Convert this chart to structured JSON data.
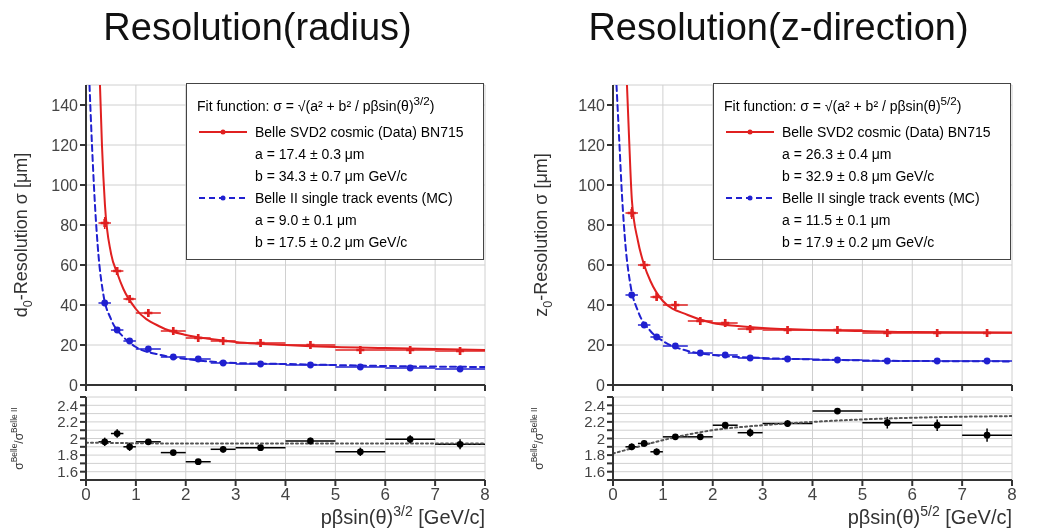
{
  "chart_data": [
    {
      "type": "scatter",
      "title": "Resolution(radius)",
      "ylabel": "d$_{0}$-Resolution σ [μm]",
      "legend_title": "Fit function:   σ = √(a² + b² / pβsin(θ)$^{3/2}$)",
      "annotations": [
        "a =  17.4 ± 0.3 μm",
        "b =  34.3 ± 0.7 μm GeV/c",
        "a =  9.0 ± 0.1 μm",
        "b =  17.5 ± 0.2 μm GeV/c"
      ],
      "xlim": [
        0,
        8
      ],
      "xticks": [
        0,
        1,
        2,
        3,
        4,
        5,
        6,
        7,
        8
      ],
      "ylim": [
        0,
        150
      ],
      "yticks": [
        0,
        20,
        40,
        60,
        80,
        100,
        120,
        140
      ],
      "grid": true,
      "legend": "top right",
      "tick_labels": "y",
      "series": [
        {
          "name": "Belle SVD2 cosmic (Data) BN715",
          "color": "#e02020",
          "marker": "cross",
          "x": [
            0.375,
            0.625,
            0.875,
            1.25,
            1.75,
            2.25,
            2.75,
            3.5,
            4.5,
            5.5,
            6.5,
            7.5
          ],
          "values": [
            81,
            57,
            43,
            36,
            27,
            23.5,
            22,
            21,
            20,
            17.5,
            17.5,
            17
          ],
          "xerrors": [
            0.125,
            0.125,
            0.125,
            0.25,
            0.25,
            0.25,
            0.25,
            0.5,
            0.5,
            0.5,
            0.5,
            0.5
          ],
          "errors": [
            3,
            2,
            1.5,
            1,
            1,
            1,
            1,
            null,
            null,
            null,
            null,
            null
          ]
        },
        {
          "name": "Belle II single track events (MC)",
          "color": "#2020d0",
          "marker": "circle",
          "x": [
            0.375,
            0.625,
            0.875,
            1.25,
            1.75,
            2.25,
            2.75,
            3.5,
            4.5,
            5.5,
            6.5,
            7.5
          ],
          "values": [
            41,
            27.5,
            22,
            18,
            14,
            13,
            11,
            10.5,
            10,
            9,
            8.5,
            8
          ],
          "xerrors": [
            0.125,
            0.125,
            0.125,
            0.25,
            0.25,
            0.25,
            0.25,
            0.5,
            0.5,
            0.5,
            0.5,
            0.5
          ],
          "errors": [
            1,
            1,
            1,
            null,
            null,
            null,
            null,
            null,
            null,
            null,
            null,
            null
          ]
        },
        {
          "type": "line",
          "color": "#e02020",
          "line_style": "solid",
          "x": [
            0.28,
            0.32,
            0.38,
            0.5,
            0.625,
            0.75,
            1,
            1.5,
            2,
            2.5,
            3,
            4,
            5,
            6,
            8
          ],
          "values": [
            150,
            120,
            90,
            66,
            56,
            48,
            38,
            29,
            25,
            23,
            21.5,
            20,
            19,
            18.5,
            17.5
          ]
        },
        {
          "type": "line",
          "color": "#2020d0",
          "line_style": "dashed",
          "x": [
            0.07,
            0.12,
            0.18,
            0.25,
            0.35,
            0.5,
            0.75,
            1,
            1.5,
            2,
            3,
            4,
            6,
            8
          ],
          "values": [
            150,
            120,
            90,
            65,
            45,
            33,
            24,
            19,
            15,
            13,
            11,
            10.5,
            9.5,
            9
          ]
        }
      ]
    },
    {
      "type": "scatter",
      "title": "Resolution(z-direction)",
      "ylabel": "z$_{0}$-Resolution σ [μm]",
      "legend_title": "Fit function:   σ = √(a² + b² / pβsin(θ)$^{5/2}$)",
      "annotations": [
        "a =  26.3 ± 0.4 μm",
        "b =  32.9 ± 0.8 μm GeV/c",
        "a =  11.5 ± 0.1 μm",
        "b =  17.9 ± 0.2 μm GeV/c"
      ],
      "xlim": [
        0,
        8
      ],
      "xticks": [
        0,
        1,
        2,
        3,
        4,
        5,
        6,
        7,
        8
      ],
      "ylim": [
        0,
        150
      ],
      "yticks": [
        0,
        20,
        40,
        60,
        80,
        100,
        120,
        140
      ],
      "grid": true,
      "legend": "top right",
      "tick_labels": "y",
      "series": [
        {
          "name": "Belle SVD2 cosmic (Data) BN715",
          "color": "#e02020",
          "marker": "cross",
          "x": [
            0.375,
            0.625,
            0.875,
            1.25,
            1.75,
            2.25,
            2.75,
            3.5,
            4.5,
            5.5,
            6.5,
            7.5
          ],
          "values": [
            86,
            60,
            44,
            40,
            32,
            31,
            28,
            27.5,
            27.5,
            26,
            26,
            26
          ],
          "xerrors": [
            0.125,
            0.125,
            0.125,
            0.25,
            0.25,
            0.25,
            0.25,
            0.5,
            0.5,
            0.5,
            0.5,
            0.5
          ],
          "errors": [
            3,
            2,
            1.5,
            1,
            1,
            1,
            1,
            null,
            null,
            null,
            null,
            null
          ]
        },
        {
          "name": "Belle II single track events (MC)",
          "color": "#2020d0",
          "marker": "circle",
          "x": [
            0.375,
            0.625,
            0.875,
            1.25,
            1.75,
            2.25,
            2.75,
            3.5,
            4.5,
            5.5,
            6.5,
            7.5
          ],
          "values": [
            45,
            30,
            24,
            19.5,
            16,
            15,
            13.5,
            13,
            12.5,
            12,
            12,
            12
          ],
          "xerrors": [
            0.125,
            0.125,
            0.125,
            0.25,
            0.25,
            0.25,
            0.25,
            0.5,
            0.5,
            0.5,
            0.5,
            0.5
          ],
          "errors": [
            1,
            1,
            1,
            null,
            null,
            null,
            null,
            null,
            null,
            null,
            null,
            null
          ]
        },
        {
          "type": "line",
          "color": "#e02020",
          "line_style": "solid",
          "x": [
            0.28,
            0.32,
            0.38,
            0.5,
            0.625,
            0.75,
            1,
            1.5,
            2,
            2.5,
            3,
            4,
            5,
            6,
            8
          ],
          "values": [
            150,
            125,
            92,
            72,
            60,
            52,
            42,
            35,
            31,
            29.5,
            28.5,
            27.5,
            27,
            26.5,
            26.3
          ]
        },
        {
          "type": "line",
          "color": "#2020d0",
          "line_style": "dashed",
          "x": [
            0.07,
            0.12,
            0.18,
            0.25,
            0.35,
            0.5,
            0.75,
            1,
            1.5,
            2,
            3,
            4,
            6,
            8
          ],
          "values": [
            150,
            125,
            95,
            70,
            50,
            37,
            27,
            22,
            17,
            15,
            13.5,
            12.8,
            12,
            11.8
          ]
        }
      ]
    },
    {
      "type": "scatter",
      "ylabel": "σ$^{Belle}$/σ$^{Belle II}$",
      "xlabel": "pβsin(θ)$^{3/2}$ [GeV/c]",
      "xlim": [
        0,
        8
      ],
      "xticks": [
        0,
        1,
        2,
        3,
        4,
        5,
        6,
        7,
        8
      ],
      "ylim": [
        1.5,
        2.5
      ],
      "yticks": [
        {
          "value": 1.5,
          "label": null
        },
        1.6,
        {
          "value": 1.7,
          "label": null
        },
        1.8,
        {
          "value": 1.9,
          "label": null
        },
        2,
        {
          "value": 2.1,
          "label": null
        },
        2.2,
        {
          "value": 2.3,
          "label": null
        },
        2.4,
        {
          "value": 2.5,
          "label": null
        }
      ],
      "grid": true,
      "series": [
        {
          "color": "#000000",
          "marker": "circle",
          "x": [
            0.375,
            0.625,
            0.875,
            1.25,
            1.75,
            2.25,
            2.75,
            3.5,
            4.5,
            5.5,
            6.5,
            7.5
          ],
          "values": [
            1.96,
            2.06,
            1.9,
            1.96,
            1.83,
            1.72,
            1.87,
            1.89,
            1.97,
            1.84,
            1.99,
            1.93
          ],
          "xerrors": [
            0.125,
            0.125,
            0.125,
            0.25,
            0.25,
            0.25,
            0.25,
            0.5,
            0.5,
            0.5,
            0.5,
            0.5
          ],
          "errors": [
            0.05,
            0.05,
            0.05,
            0.03,
            0.03,
            0.03,
            0.04,
            0.03,
            0.04,
            0.05,
            0.05,
            0.06
          ]
        },
        {
          "type": "line",
          "color": "#555555",
          "line_style": "dotted",
          "x": [
            0,
            2,
            4,
            8
          ],
          "values": [
            1.95,
            1.94,
            1.94,
            1.94
          ]
        }
      ]
    },
    {
      "type": "scatter",
      "ylabel": "σ$^{Belle}$/σ$^{Belle II}$",
      "xlabel": "pβsin(θ)$^{5/2}$ [GeV/c]",
      "xlim": [
        0,
        8
      ],
      "xticks": [
        0,
        1,
        2,
        3,
        4,
        5,
        6,
        7,
        8
      ],
      "ylim": [
        1.5,
        2.5
      ],
      "yticks": [
        {
          "value": 1.5,
          "label": null
        },
        1.6,
        {
          "value": 1.7,
          "label": null
        },
        1.8,
        {
          "value": 1.9,
          "label": null
        },
        2,
        {
          "value": 2.1,
          "label": null
        },
        2.2,
        {
          "value": 2.3,
          "label": null
        },
        2.4,
        {
          "value": 2.5,
          "label": null
        }
      ],
      "grid": true,
      "series": [
        {
          "color": "#000000",
          "marker": "circle",
          "x": [
            0.375,
            0.625,
            0.875,
            1.25,
            1.75,
            2.25,
            2.75,
            3.5,
            4.5,
            5.5,
            6.5,
            7.5
          ],
          "values": [
            1.9,
            1.94,
            1.84,
            2.02,
            2.02,
            2.16,
            2.07,
            2.18,
            2.33,
            2.19,
            2.16,
            2.04
          ],
          "xerrors": [
            0.125,
            0.125,
            0.125,
            0.25,
            0.25,
            0.25,
            0.25,
            0.5,
            0.5,
            0.5,
            0.5,
            0.5
          ],
          "errors": [
            0.04,
            0.04,
            0.04,
            0.03,
            0.03,
            0.04,
            0.05,
            0.04,
            0.03,
            0.07,
            0.07,
            0.08
          ]
        },
        {
          "type": "line",
          "color": "#555555",
          "line_style": "dotted",
          "x": [
            0,
            0.5,
            1,
            2,
            3,
            4,
            5,
            6,
            8
          ],
          "values": [
            1.82,
            1.9,
            1.98,
            2.1,
            2.16,
            2.2,
            2.23,
            2.25,
            2.27
          ]
        }
      ]
    }
  ]
}
